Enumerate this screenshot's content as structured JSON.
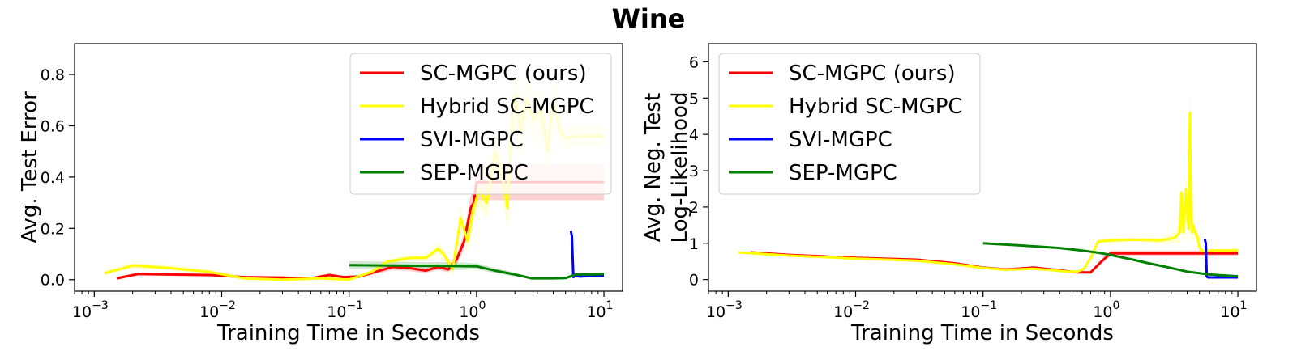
{
  "figure": {
    "title": "Wine"
  },
  "chart_data": [
    {
      "type": "line",
      "title": "",
      "xlabel": "Training Time in Seconds",
      "ylabel_lines": [
        "Avg. Test Error"
      ],
      "xscale": "log",
      "xlim": [
        0.0007,
        14
      ],
      "ylim": [
        -0.045,
        0.92
      ],
      "xticks": [
        {
          "value": 0.001,
          "base": "10",
          "exp": "−3"
        },
        {
          "value": 0.01,
          "base": "10",
          "exp": "−2"
        },
        {
          "value": 0.1,
          "base": "10",
          "exp": "−1"
        },
        {
          "value": 1,
          "base": "10",
          "exp": "0"
        },
        {
          "value": 10,
          "base": "10",
          "exp": "1"
        }
      ],
      "yticks": [
        {
          "value": 0.0,
          "label": "0.0"
        },
        {
          "value": 0.2,
          "label": "0.2"
        },
        {
          "value": 0.4,
          "label": "0.4"
        },
        {
          "value": 0.6,
          "label": "0.6"
        },
        {
          "value": 0.8,
          "label": "0.8"
        }
      ],
      "grid": false,
      "legend_position": "top-right",
      "series": [
        {
          "name": "SC-MGPC (ours)",
          "color": "#ff0000",
          "band_color": "#ff6666",
          "x": [
            0.0015,
            0.0022,
            0.004,
            0.008,
            0.015,
            0.03,
            0.05,
            0.07,
            0.09,
            0.12,
            0.16,
            0.22,
            0.3,
            0.4,
            0.5,
            0.6,
            0.7,
            0.8,
            0.9,
            0.95,
            1.0,
            1.5,
            2,
            3,
            5,
            10
          ],
          "y": [
            0.005,
            0.022,
            0.02,
            0.018,
            0.01,
            0.008,
            0.005,
            0.018,
            0.01,
            0.012,
            0.03,
            0.05,
            0.045,
            0.035,
            0.05,
            0.04,
            0.08,
            0.15,
            0.28,
            0.3,
            0.38,
            0.38,
            0.38,
            0.38,
            0.38,
            0.38
          ],
          "band": [
            0.006,
            0.006,
            0.006,
            0.006,
            0.005,
            0.005,
            0.005,
            0.006,
            0.005,
            0.006,
            0.01,
            0.012,
            0.012,
            0.01,
            0.012,
            0.012,
            0.02,
            0.03,
            0.05,
            0.05,
            0.07,
            0.07,
            0.07,
            0.07,
            0.07,
            0.07
          ]
        },
        {
          "name": "Hybrid SC-MGPC",
          "color": "#ffff00",
          "band_color": "#ffff66",
          "x": [
            0.0012,
            0.002,
            0.004,
            0.008,
            0.015,
            0.03,
            0.06,
            0.1,
            0.15,
            0.2,
            0.3,
            0.4,
            0.5,
            0.55,
            0.65,
            0.75,
            0.85,
            0.95,
            1.05,
            1.2,
            1.4,
            1.6,
            1.75,
            1.85,
            2.0,
            2.2,
            2.5,
            2.8,
            3.2,
            3.6,
            4.0,
            4.5,
            5.0,
            6,
            10
          ],
          "y": [
            0.025,
            0.055,
            0.045,
            0.03,
            0.005,
            0.0,
            0.005,
            0.0,
            0.03,
            0.07,
            0.085,
            0.085,
            0.12,
            0.1,
            0.04,
            0.24,
            0.15,
            0.28,
            0.35,
            0.3,
            0.5,
            0.4,
            0.28,
            0.55,
            0.72,
            0.58,
            0.7,
            0.62,
            0.66,
            0.5,
            0.7,
            0.58,
            0.55,
            0.56,
            0.56
          ],
          "band": [
            0.01,
            0.01,
            0.01,
            0.01,
            0.006,
            0.005,
            0.005,
            0.005,
            0.01,
            0.01,
            0.012,
            0.012,
            0.02,
            0.02,
            0.02,
            0.04,
            0.04,
            0.05,
            0.06,
            0.06,
            0.08,
            0.08,
            0.08,
            0.1,
            0.12,
            0.12,
            0.12,
            0.1,
            0.1,
            0.1,
            0.1,
            0.06,
            0.04,
            0.04,
            0.04
          ]
        },
        {
          "name": "SVI-MGPC",
          "color": "#0000ff",
          "band_color": "#6666ff",
          "x": [
            5.5,
            5.6,
            5.75,
            5.9,
            6.5,
            8,
            10
          ],
          "y": [
            0.19,
            0.17,
            0.01,
            0.015,
            0.012,
            0.015,
            0.015
          ],
          "band": [
            0.02,
            0.02,
            0.005,
            0.005,
            0.005,
            0.005,
            0.005
          ]
        },
        {
          "name": "SEP-MGPC",
          "color": "#008000",
          "band_color": "#66b366",
          "x": [
            0.1,
            0.2,
            0.4,
            0.7,
            1.0,
            1.4,
            2,
            2.7,
            4,
            5,
            6,
            8,
            10
          ],
          "y": [
            0.057,
            0.055,
            0.054,
            0.053,
            0.052,
            0.035,
            0.02,
            0.005,
            0.005,
            0.006,
            0.02,
            0.02,
            0.022
          ],
          "band": [
            0.015,
            0.015,
            0.015,
            0.015,
            0.012,
            0.01,
            0.008,
            0.004,
            0.004,
            0.004,
            0.006,
            0.006,
            0.006
          ]
        }
      ]
    },
    {
      "type": "line",
      "title": "",
      "xlabel": "Training Time in Seconds",
      "ylabel_lines": [
        "Avg. Neg. Test",
        "Log-Likelihood"
      ],
      "xscale": "log",
      "xlim": [
        0.0007,
        14
      ],
      "ylim": [
        -0.32,
        6.5
      ],
      "xticks": [
        {
          "value": 0.001,
          "base": "10",
          "exp": "−3"
        },
        {
          "value": 0.01,
          "base": "10",
          "exp": "−2"
        },
        {
          "value": 0.1,
          "base": "10",
          "exp": "−1"
        },
        {
          "value": 1,
          "base": "10",
          "exp": "0"
        },
        {
          "value": 10,
          "base": "10",
          "exp": "1"
        }
      ],
      "yticks": [
        {
          "value": 0,
          "label": "0"
        },
        {
          "value": 1,
          "label": "1"
        },
        {
          "value": 2,
          "label": "2"
        },
        {
          "value": 3,
          "label": "3"
        },
        {
          "value": 4,
          "label": "4"
        },
        {
          "value": 5,
          "label": "5"
        },
        {
          "value": 6,
          "label": "6"
        }
      ],
      "grid": false,
      "legend_position": "top-left",
      "series": [
        {
          "name": "SC-MGPC (ours)",
          "color": "#ff0000",
          "band_color": "#ff6666",
          "x": [
            0.0015,
            0.003,
            0.01,
            0.03,
            0.06,
            0.1,
            0.15,
            0.25,
            0.4,
            0.55,
            0.7,
            0.85,
            1.0,
            1.3,
            2,
            3,
            5,
            10
          ],
          "y": [
            0.75,
            0.68,
            0.6,
            0.55,
            0.45,
            0.33,
            0.28,
            0.33,
            0.25,
            0.2,
            0.2,
            0.5,
            0.72,
            0.72,
            0.72,
            0.72,
            0.72,
            0.72
          ],
          "band": [
            0.04,
            0.03,
            0.03,
            0.03,
            0.03,
            0.03,
            0.03,
            0.04,
            0.04,
            0.04,
            0.04,
            0.06,
            0.08,
            0.08,
            0.08,
            0.08,
            0.08,
            0.08
          ]
        },
        {
          "name": "Hybrid SC-MGPC",
          "color": "#ffff00",
          "band_color": "#ffff66",
          "x": [
            0.0012,
            0.003,
            0.01,
            0.03,
            0.06,
            0.1,
            0.15,
            0.25,
            0.35,
            0.45,
            0.55,
            0.62,
            0.7,
            0.8,
            1.0,
            1.5,
            2.5,
            3.2,
            3.5,
            3.6,
            3.75,
            3.9,
            4.1,
            4.2,
            4.3,
            4.35,
            4.45,
            4.6,
            4.8,
            5.0,
            5.2,
            6,
            10
          ],
          "y": [
            0.75,
            0.66,
            0.58,
            0.52,
            0.42,
            0.32,
            0.27,
            0.3,
            0.26,
            0.22,
            0.22,
            0.3,
            0.6,
            1.05,
            1.08,
            1.1,
            1.08,
            1.15,
            1.3,
            2.4,
            1.3,
            2.5,
            1.4,
            4.6,
            1.8,
            1.3,
            1.5,
            1.3,
            1.2,
            0.9,
            0.78,
            0.8,
            0.8
          ],
          "band": [
            0.04,
            0.03,
            0.03,
            0.03,
            0.03,
            0.03,
            0.03,
            0.03,
            0.03,
            0.03,
            0.03,
            0.05,
            0.06,
            0.06,
            0.06,
            0.06,
            0.08,
            0.15,
            0.3,
            0.4,
            0.3,
            0.4,
            0.3,
            1.2,
            0.4,
            0.3,
            0.3,
            0.2,
            0.2,
            0.1,
            0.08,
            0.08,
            0.08
          ]
        },
        {
          "name": "SVI-MGPC",
          "color": "#0000ff",
          "band_color": "#6666ff",
          "x": [
            5.5,
            5.6,
            5.7,
            5.85,
            6.5,
            8,
            10
          ],
          "y": [
            1.12,
            1.0,
            0.08,
            0.06,
            0.06,
            0.06,
            0.06
          ],
          "band": [
            0.03,
            0.03,
            0.01,
            0.01,
            0.01,
            0.01,
            0.01
          ]
        },
        {
          "name": "SEP-MGPC",
          "color": "#008000",
          "band_color": "#66b366",
          "x": [
            0.1,
            0.2,
            0.4,
            0.6,
            0.8,
            1.0,
            1.5,
            2,
            3,
            4,
            6,
            10
          ],
          "y": [
            1.0,
            0.94,
            0.87,
            0.8,
            0.74,
            0.68,
            0.55,
            0.45,
            0.32,
            0.22,
            0.14,
            0.09
          ],
          "band": [
            0.01,
            0.01,
            0.01,
            0.01,
            0.01,
            0.01,
            0.01,
            0.01,
            0.01,
            0.01,
            0.01,
            0.01
          ]
        }
      ]
    }
  ]
}
